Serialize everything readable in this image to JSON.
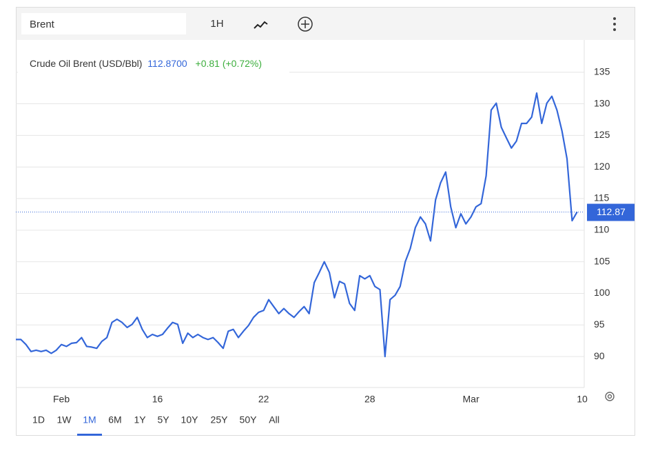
{
  "toolbar": {
    "search": "Brent",
    "interval": "1H"
  },
  "range_buttons": [
    "1D",
    "1W",
    "1M",
    "6M",
    "1Y",
    "5Y",
    "10Y",
    "25Y",
    "50Y",
    "All"
  ],
  "active_range": 2,
  "chart_data": {
    "type": "line",
    "title": "Crude Oil Brent (USD/Bbl)",
    "last_price": {
      "value": 112.87,
      "label": "112.8700"
    },
    "change": "+0.81 (+0.72%)",
    "current_marker": 112.87,
    "color": "#3366d9",
    "values": [
      92.7,
      92.7,
      91.9,
      90.8,
      91.0,
      90.8,
      91.0,
      90.5,
      91.0,
      91.9,
      91.6,
      92.1,
      92.2,
      93.0,
      91.6,
      91.5,
      91.3,
      92.4,
      93.0,
      95.4,
      95.9,
      95.4,
      94.6,
      95.1,
      96.2,
      94.3,
      93.0,
      93.5,
      93.2,
      93.5,
      94.5,
      95.4,
      95.1,
      92.1,
      93.7,
      93.0,
      93.5,
      93.0,
      92.7,
      93.0,
      92.2,
      91.3,
      94.0,
      94.3,
      93.0,
      94.0,
      94.9,
      96.2,
      97.0,
      97.3,
      99.0,
      97.9,
      96.8,
      97.6,
      96.8,
      96.2,
      97.1,
      97.9,
      96.8,
      101.7,
      103.3,
      105.0,
      103.3,
      99.3,
      101.9,
      101.5,
      98.4,
      97.3,
      102.8,
      102.3,
      102.8,
      101.1,
      100.6,
      90.0,
      99.0,
      99.7,
      101.1,
      105.0,
      107.1,
      110.4,
      112.1,
      111.0,
      108.3,
      114.8,
      117.5,
      119.2,
      113.7,
      110.4,
      112.6,
      111.0,
      112.1,
      113.7,
      114.2,
      118.6,
      129.0,
      130.1,
      126.3,
      124.6,
      123.0,
      124.1,
      126.9,
      126.9,
      127.9,
      131.7,
      126.9,
      130.1,
      131.2,
      129.0,
      125.7,
      121.3,
      111.5,
      112.9
    ],
    "xlim": [
      0,
      112.4
    ],
    "xticks": [
      {
        "value": 9,
        "label": "Feb"
      },
      {
        "value": 28,
        "label": "16"
      },
      {
        "value": 49,
        "label": "22"
      },
      {
        "value": 70,
        "label": "28"
      },
      {
        "value": 90,
        "label": "Mar"
      },
      {
        "value": 112,
        "label": "10"
      }
    ],
    "ylim": [
      85.1,
      140.1
    ],
    "yticks": [
      90,
      95,
      100,
      105,
      110,
      115,
      120,
      125,
      130,
      135
    ],
    "grid": true
  }
}
